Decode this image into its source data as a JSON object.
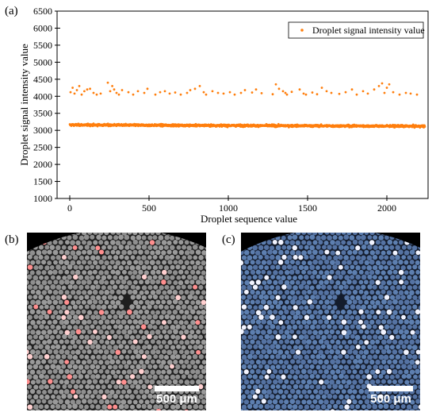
{
  "panel_labels": {
    "a": "(a)",
    "b": "(b)",
    "c": "(c)"
  },
  "colors": {
    "series": "#ff7f0e",
    "droplet_gray": "#9a9a9a",
    "droplet_red": "#ff8f8f",
    "droplet_blue": "#5d7fb0"
  },
  "chart_data": {
    "type": "scatter",
    "title": "",
    "xlabel": "Droplet sequence value",
    "ylabel": "Droplet signal intensity value",
    "xlim": [
      -80,
      2260
    ],
    "ylim": [
      1000,
      6500
    ],
    "xticks": [
      0,
      500,
      1000,
      1500,
      2000
    ],
    "yticks": [
      1000,
      1500,
      2000,
      2500,
      3000,
      3500,
      4000,
      4500,
      5000,
      5500,
      6000,
      6500
    ],
    "grid": false,
    "legend": {
      "position": "top-right"
    },
    "series": [
      {
        "name": "Droplet signal intensity value",
        "color": "#ff7f0e",
        "main_band": {
          "x_range": [
            0,
            2240
          ],
          "count": 2240,
          "center": 3160,
          "spread": 40,
          "trend_end": 3120
        },
        "high_points": [
          [
            5,
            4120
          ],
          [
            18,
            4250
          ],
          [
            30,
            4080
          ],
          [
            45,
            4180
          ],
          [
            60,
            4300
          ],
          [
            75,
            4050
          ],
          [
            92,
            4150
          ],
          [
            110,
            4200
          ],
          [
            128,
            4220
          ],
          [
            150,
            4100
          ],
          [
            170,
            4050
          ],
          [
            195,
            4080
          ],
          [
            240,
            4400
          ],
          [
            255,
            4150
          ],
          [
            268,
            4300
          ],
          [
            280,
            4200
          ],
          [
            295,
            4100
          ],
          [
            310,
            4050
          ],
          [
            330,
            4180
          ],
          [
            370,
            4120
          ],
          [
            400,
            4050
          ],
          [
            430,
            4150
          ],
          [
            470,
            4100
          ],
          [
            490,
            4220
          ],
          [
            540,
            4050
          ],
          [
            570,
            4120
          ],
          [
            600,
            4150
          ],
          [
            630,
            4080
          ],
          [
            665,
            4110
          ],
          [
            700,
            4050
          ],
          [
            740,
            4100
          ],
          [
            760,
            4180
          ],
          [
            790,
            4220
          ],
          [
            820,
            4300
          ],
          [
            845,
            4120
          ],
          [
            860,
            4050
          ],
          [
            900,
            4150
          ],
          [
            935,
            4100
          ],
          [
            970,
            4080
          ],
          [
            1010,
            4120
          ],
          [
            1040,
            4050
          ],
          [
            1080,
            4100
          ],
          [
            1105,
            4180
          ],
          [
            1150,
            4110
          ],
          [
            1175,
            4200
          ],
          [
            1210,
            4090
          ],
          [
            1280,
            4060
          ],
          [
            1300,
            4350
          ],
          [
            1320,
            4220
          ],
          [
            1345,
            4150
          ],
          [
            1360,
            4100
          ],
          [
            1370,
            4050
          ],
          [
            1400,
            4130
          ],
          [
            1450,
            4200
          ],
          [
            1475,
            4080
          ],
          [
            1490,
            4050
          ],
          [
            1530,
            4110
          ],
          [
            1560,
            4060
          ],
          [
            1590,
            4250
          ],
          [
            1620,
            4150
          ],
          [
            1650,
            4100
          ],
          [
            1700,
            4070
          ],
          [
            1740,
            4120
          ],
          [
            1780,
            4200
          ],
          [
            1810,
            4050
          ],
          [
            1850,
            4150
          ],
          [
            1880,
            4080
          ],
          [
            1920,
            4200
          ],
          [
            1950,
            4300
          ],
          [
            1970,
            4380
          ],
          [
            1985,
            4100
          ],
          [
            2000,
            4250
          ],
          [
            2015,
            4350
          ],
          [
            2040,
            4120
          ],
          [
            2080,
            4050
          ],
          [
            2120,
            4100
          ],
          [
            2150,
            4080
          ],
          [
            2190,
            4050
          ]
        ]
      }
    ]
  },
  "images": {
    "b": {
      "scalebar_label": "500 μm"
    },
    "c": {
      "scalebar_label": "500 μm"
    }
  }
}
